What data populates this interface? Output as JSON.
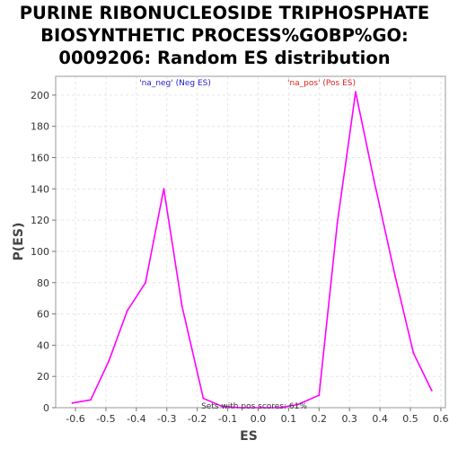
{
  "chart_data": {
    "type": "line",
    "title_lines": [
      "PURINE RIBONUCLEOSIDE TRIPHOSPHATE",
      "BIOSYNTHETIC PROCESS%GOBP%GO:",
      "0009206: Random ES distribution"
    ],
    "xlabel": "ES",
    "ylabel": "P(ES)",
    "xlim": [
      -0.665,
      0.615
    ],
    "ylim": [
      0,
      212
    ],
    "x_ticks": [
      -0.6,
      -0.5,
      -0.4,
      -0.3,
      -0.2,
      -0.1,
      0.0,
      0.1,
      0.2,
      0.3,
      0.4,
      0.5,
      0.6
    ],
    "x_tick_labels": [
      "-0.6",
      "-0.5",
      "-0.4",
      "-0.3",
      "-0.2",
      "-0.1",
      "0.0",
      "0.1",
      "0.2",
      "0.3",
      "0.4",
      "0.5",
      "0.6"
    ],
    "y_ticks": [
      0,
      20,
      40,
      60,
      80,
      100,
      120,
      140,
      160,
      180,
      200
    ],
    "grid": true,
    "series": [
      {
        "name": "",
        "color": "#ff00ff",
        "x": [
          -0.61,
          -0.55,
          -0.49,
          -0.43,
          -0.37,
          -0.31,
          -0.25,
          -0.18,
          -0.12,
          -0.06,
          0.01,
          0.07,
          0.13,
          0.2,
          0.26,
          0.32,
          0.38,
          0.45,
          0.51,
          0.57
        ],
        "y": [
          3,
          5,
          30,
          62,
          80,
          140,
          65,
          6,
          1,
          0,
          0,
          0,
          2,
          8,
          118,
          202,
          146,
          84,
          35,
          11
        ]
      }
    ],
    "annotations": {
      "neg_label": "'na_neg' (Neg ES)",
      "neg_color": "#2222cc",
      "pos_label": "'na_pos' (Pos ES)",
      "pos_color": "#dd2222",
      "footer": "Sets with pos scores: 61%"
    }
  }
}
